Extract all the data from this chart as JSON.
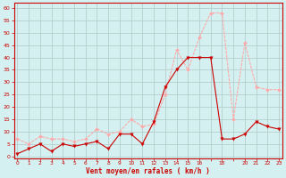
{
  "x": [
    0,
    1,
    2,
    3,
    4,
    5,
    6,
    7,
    8,
    9,
    10,
    11,
    12,
    13,
    14,
    15,
    16,
    17,
    18,
    19,
    20,
    21,
    22,
    23
  ],
  "vent_moyen": [
    1,
    3,
    5,
    2,
    5,
    4,
    5,
    6,
    3,
    9,
    9,
    5,
    14,
    28,
    35,
    40,
    40,
    40,
    7,
    7,
    9,
    14,
    12,
    11
  ],
  "rafales": [
    7,
    5,
    8,
    7,
    7,
    6,
    7,
    11,
    9,
    10,
    15,
    12,
    13,
    25,
    43,
    35,
    48,
    58,
    58,
    15,
    46,
    28,
    27,
    27
  ],
  "line_color_moyen": "#cc0000",
  "line_color_rafales": "#ffaaaa",
  "bg_color": "#d4f0f0",
  "grid_color": "#b0c8c8",
  "axis_color": "#cc0000",
  "xlabel": "Vent moyen/en rafales ( km/h )",
  "ylabel_ticks": [
    0,
    5,
    10,
    15,
    20,
    25,
    30,
    35,
    40,
    45,
    50,
    55,
    60
  ],
  "xtick_labels": [
    "0",
    "1",
    "2",
    "3",
    "4",
    "5",
    "6",
    "7",
    "8",
    "9",
    "10",
    "11",
    "12",
    "13",
    "14",
    "15",
    "16",
    "",
    "18",
    "",
    "20",
    "21",
    "22",
    "23"
  ],
  "xlim": [
    -0.3,
    23.3
  ],
  "ylim": [
    -1,
    62
  ]
}
